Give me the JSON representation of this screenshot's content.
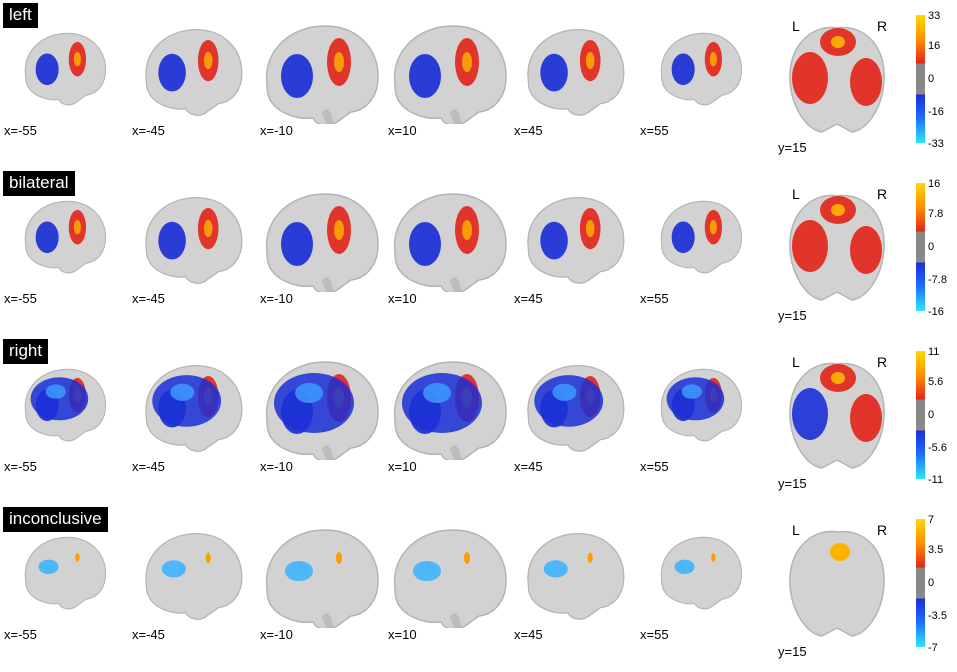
{
  "rows": [
    {
      "id": "left",
      "label": "left",
      "slices": [
        "x=-55",
        "x=-45",
        "x=-10",
        "x=10",
        "x=45",
        "x=55"
      ],
      "coronal": {
        "label": "y=15",
        "L": "L",
        "R": "R"
      },
      "colorbar": {
        "ticks": [
          "33",
          "16",
          "0",
          "-16",
          "-33"
        ]
      }
    },
    {
      "id": "bilateral",
      "label": "bilateral",
      "slices": [
        "x=-55",
        "x=-45",
        "x=-10",
        "x=10",
        "x=45",
        "x=55"
      ],
      "coronal": {
        "label": "y=15",
        "L": "L",
        "R": "R"
      },
      "colorbar": {
        "ticks": [
          "16",
          "7.8",
          "0",
          "-7.8",
          "-16"
        ]
      }
    },
    {
      "id": "right",
      "label": "right",
      "slices": [
        "x=-55",
        "x=-45",
        "x=-10",
        "x=10",
        "x=45",
        "x=55"
      ],
      "coronal": {
        "label": "y=15",
        "L": "L",
        "R": "R"
      },
      "colorbar": {
        "ticks": [
          "11",
          "5.6",
          "0",
          "-5.6",
          "-11"
        ]
      }
    },
    {
      "id": "inconclusive",
      "label": "inconclusive",
      "slices": [
        "x=-55",
        "x=-45",
        "x=-10",
        "x=10",
        "x=45",
        "x=55"
      ],
      "coronal": {
        "label": "y=15",
        "L": "L",
        "R": "R"
      },
      "colorbar": {
        "ticks": [
          "7",
          "3.5",
          "0",
          "-3.5",
          "-7"
        ]
      }
    }
  ],
  "colors": {
    "positive": "#e2231a",
    "positive_peak": "#ffd800",
    "negative": "#1a2fd6",
    "negative_peak": "#2ee6ff",
    "brain": "#d2d2d2",
    "neutral": "#888888"
  }
}
